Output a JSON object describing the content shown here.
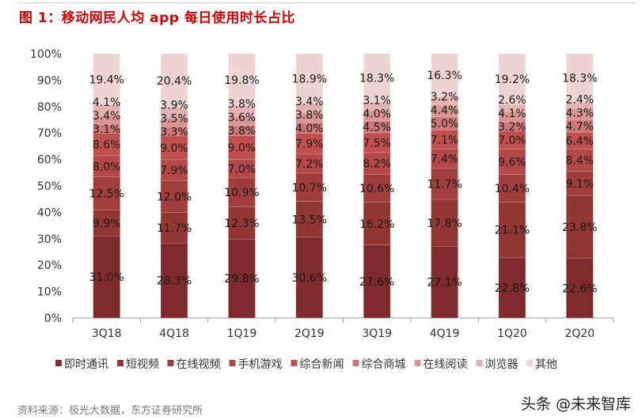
{
  "title": "图 1：移动网民人均 app 每日使用时长占比",
  "source": "资料来源：极光大数据，东方证券研究所",
  "watermark": "头条 @未来智库",
  "chart_data": {
    "type": "bar",
    "stacked": true,
    "title": "图 1：移动网民人均 app 每日使用时长占比",
    "xlabel": "",
    "ylabel": "",
    "ylim": [
      0,
      100
    ],
    "yticks": [
      "0%",
      "10%",
      "20%",
      "30%",
      "40%",
      "50%",
      "60%",
      "70%",
      "80%",
      "90%",
      "100%"
    ],
    "grid": false,
    "legend_position": "bottom",
    "categories": [
      "3Q18",
      "4Q18",
      "1Q19",
      "2Q19",
      "3Q19",
      "4Q19",
      "1Q20",
      "2Q20"
    ],
    "series": [
      {
        "name": "即时通讯",
        "color": "#7F2B2B",
        "values": [
          31.0,
          28.3,
          29.8,
          30.6,
          27.6,
          27.1,
          22.8,
          22.6
        ]
      },
      {
        "name": "短视频",
        "color": "#923634",
        "values": [
          9.9,
          11.7,
          12.3,
          13.5,
          16.2,
          17.8,
          21.1,
          23.8
        ]
      },
      {
        "name": "在线视频",
        "color": "#A13D3B",
        "values": [
          12.5,
          12.0,
          10.9,
          10.7,
          10.6,
          11.7,
          10.4,
          9.1
        ]
      },
      {
        "name": "手机游戏",
        "color": "#B54846",
        "values": [
          8.0,
          7.9,
          7.0,
          7.2,
          8.2,
          7.4,
          9.6,
          8.4
        ]
      },
      {
        "name": "综合新闻",
        "color": "#C0504D",
        "values": [
          8.6,
          9.0,
          9.0,
          7.9,
          7.5,
          7.1,
          7.0,
          6.4
        ]
      },
      {
        "name": "综合商城",
        "color": "#CB7876",
        "values": [
          3.1,
          3.3,
          3.8,
          4.0,
          4.5,
          5.0,
          3.2,
          4.7
        ]
      },
      {
        "name": "在线阅读",
        "color": "#D89593",
        "values": [
          3.4,
          3.5,
          3.6,
          3.8,
          4.0,
          4.4,
          4.1,
          4.3
        ]
      },
      {
        "name": "浏览器",
        "color": "#E3B2B1",
        "values": [
          4.1,
          3.9,
          3.8,
          3.4,
          3.1,
          3.2,
          2.6,
          2.4
        ]
      },
      {
        "name": "其他",
        "color": "#EED3D3",
        "values": [
          19.4,
          20.4,
          19.8,
          18.9,
          18.3,
          16.3,
          19.2,
          18.3
        ]
      }
    ]
  }
}
